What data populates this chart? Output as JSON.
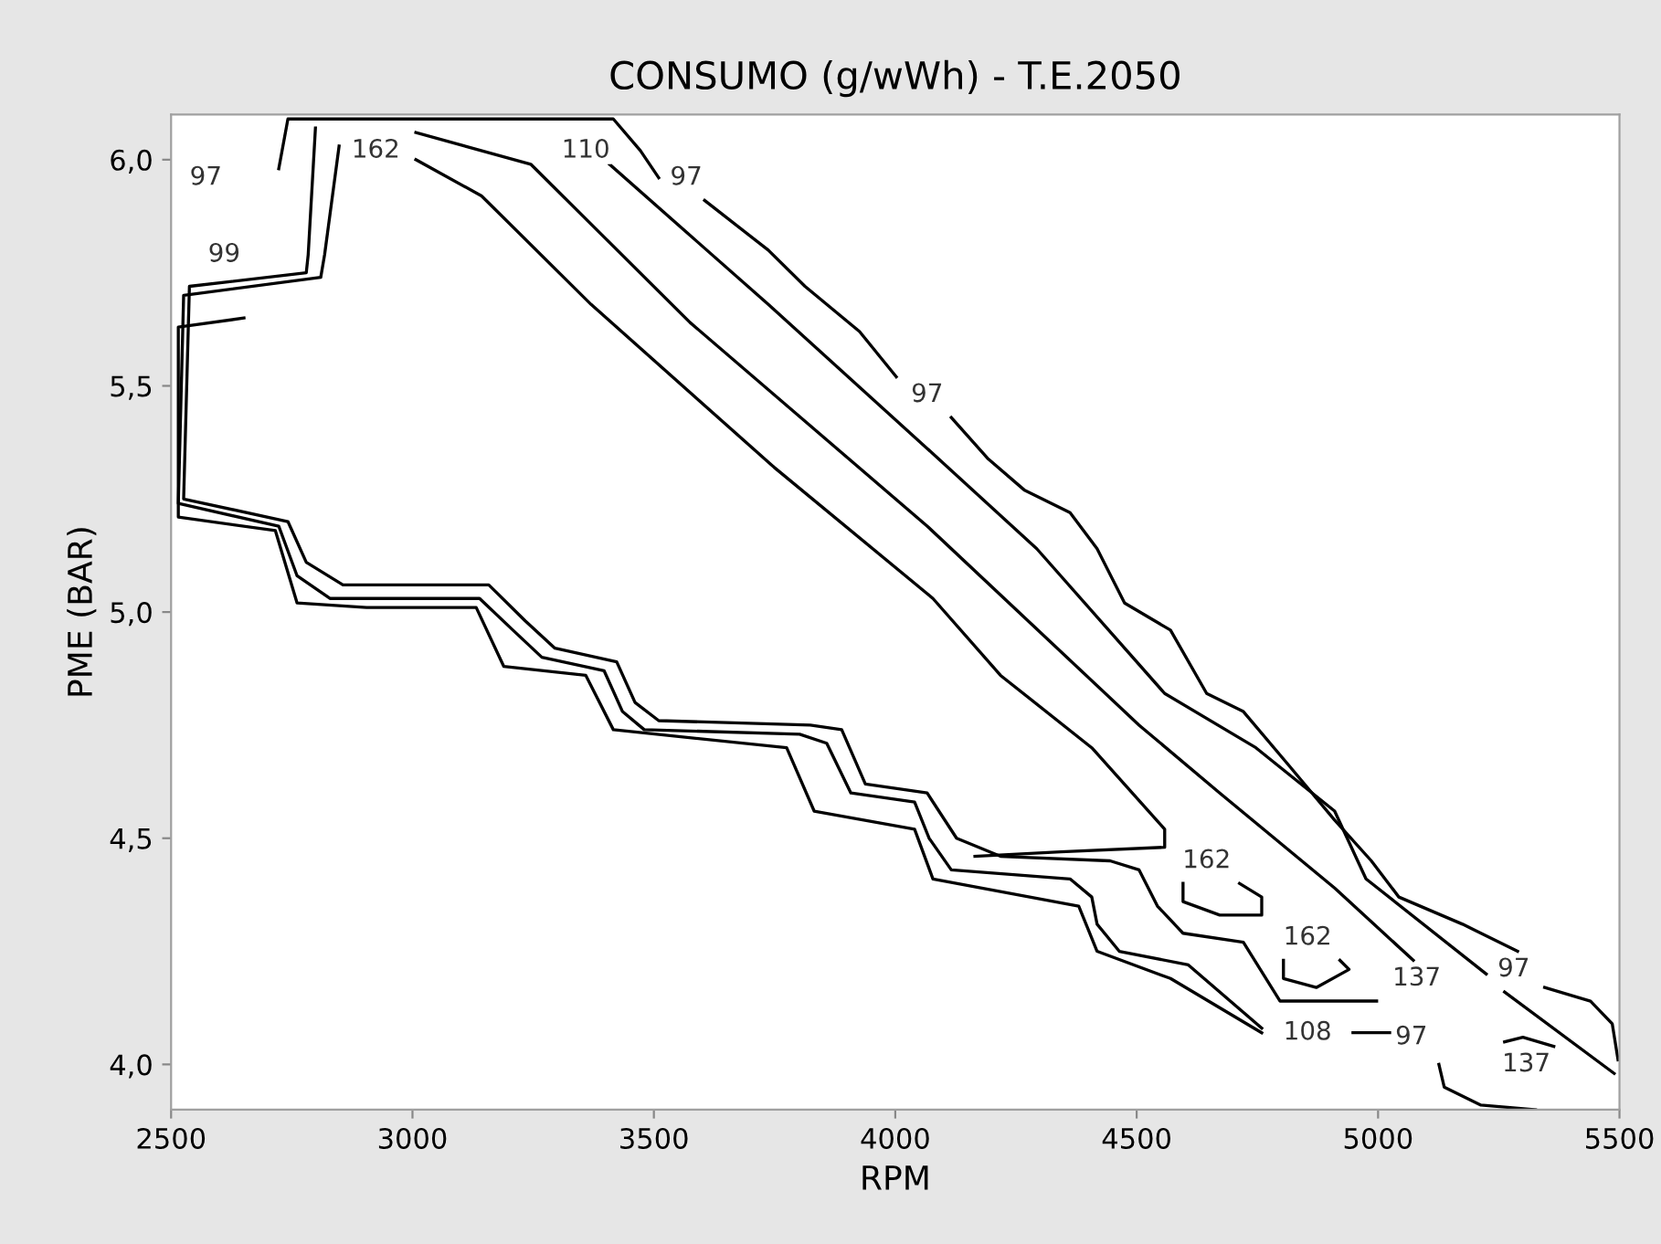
{
  "chart_data": {
    "type": "line",
    "title": "CONSUMO (g/wWh) - T.E.2050",
    "xlabel": "RPM",
    "ylabel": "PME (BAR)",
    "xlim": [
      2500,
      5500
    ],
    "ylim": [
      3.9,
      6.1
    ],
    "xticks": [
      2500,
      3000,
      3500,
      4000,
      4500,
      5000,
      5500
    ],
    "yticks": [
      {
        "value": 4.0,
        "label": "4,0"
      },
      {
        "value": 4.5,
        "label": "4,5"
      },
      {
        "value": 5.0,
        "label": "5,0"
      },
      {
        "value": 5.5,
        "label": "5,5"
      },
      {
        "value": 6.0,
        "label": "6,0"
      }
    ],
    "grid": false,
    "marker": "none",
    "line_style": "solid",
    "series": [
      {
        "color": "#000000",
        "x": [
          2723,
          2742,
          3416,
          3472,
          3510,
          null,
          3605,
          3737,
          3813,
          3926,
          4002,
          null,
          4116,
          4191,
          4267,
          4362,
          4418,
          4475,
          4570,
          4645,
          4721,
          4816,
          4910,
          4986,
          5043,
          5175,
          5289,
          null,
          5345,
          5440,
          5485,
          5497
        ],
        "values": [
          5.98,
          6.09,
          6.09,
          6.02,
          5.96,
          null,
          5.91,
          5.8,
          5.72,
          5.62,
          5.52,
          null,
          5.43,
          5.34,
          5.27,
          5.22,
          5.14,
          5.02,
          4.96,
          4.82,
          4.78,
          4.66,
          4.54,
          4.45,
          4.37,
          4.31,
          4.25,
          null,
          4.17,
          4.14,
          4.09,
          4.01
        ]
      },
      {
        "color": "#000000",
        "x": [
          2651,
          2515,
          2515,
          2716,
          2761,
          2905,
          3132,
          3189,
          3359,
          3416,
          3775,
          3832,
          4040,
          4078,
          4380,
          4418,
          4570,
          4759,
          null,
          4948,
          5024,
          null,
          5126,
          5137,
          5213,
          5326
        ],
        "values": [
          5.65,
          5.63,
          5.21,
          5.18,
          5.02,
          5.01,
          5.01,
          4.88,
          4.86,
          4.74,
          4.7,
          4.56,
          4.52,
          4.41,
          4.35,
          4.25,
          4.19,
          4.07,
          null,
          4.07,
          4.07,
          null,
          4.0,
          3.95,
          3.91,
          3.9
        ]
      },
      {
        "color": "#000000",
        "x": [
          2799,
          2784,
          2780,
          2538,
          2526,
          2742,
          2780,
          2856,
          3158,
          3234,
          3295,
          3423,
          3461,
          3510,
          3824,
          3889,
          3938,
          4066,
          4127,
          4218,
          4445,
          4505,
          4543,
          4596,
          4721,
          4797,
          4997
        ],
        "values": [
          6.07,
          5.79,
          5.75,
          5.72,
          5.25,
          5.2,
          5.11,
          5.06,
          5.06,
          4.98,
          4.92,
          4.89,
          4.8,
          4.76,
          4.75,
          4.74,
          4.62,
          4.6,
          4.5,
          4.46,
          4.45,
          4.43,
          4.35,
          4.29,
          4.27,
          4.14,
          4.14
        ]
      },
      {
        "color": "#000000",
        "x": [
          2848,
          2818,
          2810,
          2526,
          2515,
          2723,
          2761,
          2829,
          3139,
          3208,
          3268,
          3397,
          3435,
          3480,
          3802,
          3858,
          3908,
          4040,
          4070,
          4116,
          4362,
          4407,
          4418,
          4464,
          4607,
          4759
        ],
        "values": [
          6.03,
          5.79,
          5.74,
          5.7,
          5.24,
          5.19,
          5.08,
          5.03,
          5.03,
          4.96,
          4.9,
          4.87,
          4.78,
          4.74,
          4.73,
          4.71,
          4.6,
          4.58,
          4.5,
          4.43,
          4.41,
          4.37,
          4.31,
          4.25,
          4.22,
          4.08
        ]
      },
      {
        "color": "#000000",
        "x": [
          3007,
          3143,
          3370,
          3749,
          4078,
          4218,
          4407,
          4558,
          4558,
          4343,
          4165
        ],
        "values": [
          6.0,
          5.92,
          5.68,
          5.32,
          5.03,
          4.86,
          4.7,
          4.52,
          4.48,
          4.47,
          4.46
        ]
      },
      {
        "color": "#000000",
        "x": [
          3007,
          3245,
          3575,
          4066,
          4505,
          4672,
          4910,
          5073
        ],
        "values": [
          6.06,
          5.99,
          5.64,
          5.19,
          4.75,
          4.6,
          4.39,
          4.23
        ]
      },
      {
        "color": "#000000",
        "x": [
          3408,
          3737,
          4078,
          4293,
          4558,
          4747,
          4910,
          4975,
          5224,
          null,
          5262,
          5489
        ],
        "values": [
          5.99,
          5.68,
          5.35,
          5.14,
          4.82,
          4.7,
          4.56,
          4.41,
          4.2,
          null,
          4.16,
          3.98
        ]
      },
      {
        "color": "#000000",
        "x": [
          4596,
          4596,
          4672,
          4759,
          4759,
          4713
        ],
        "values": [
          4.4,
          4.36,
          4.33,
          4.33,
          4.37,
          4.4
        ]
      },
      {
        "color": "#000000",
        "x": [
          4804,
          4804,
          4872,
          4940,
          4921
        ],
        "values": [
          4.23,
          4.19,
          4.17,
          4.21,
          4.23
        ]
      },
      {
        "color": "#000000",
        "x": [
          5262,
          5300,
          5364
        ],
        "values": [
          4.05,
          4.06,
          4.04
        ]
      }
    ],
    "annotations": [
      {
        "text": "97",
        "x": 2572,
        "y": 5.96
      },
      {
        "text": "99",
        "x": 2610,
        "y": 5.79
      },
      {
        "text": "162",
        "x": 2924,
        "y": 6.02
      },
      {
        "text": "110",
        "x": 3359,
        "y": 6.02
      },
      {
        "text": "97",
        "x": 3567,
        "y": 5.96
      },
      {
        "text": "97",
        "x": 4066,
        "y": 5.48
      },
      {
        "text": "162",
        "x": 4645,
        "y": 4.45
      },
      {
        "text": "162",
        "x": 4854,
        "y": 4.28
      },
      {
        "text": "137",
        "x": 5080,
        "y": 4.19
      },
      {
        "text": "97",
        "x": 5281,
        "y": 4.21
      },
      {
        "text": "108",
        "x": 4854,
        "y": 4.07
      },
      {
        "text": "97",
        "x": 5069,
        "y": 4.06
      },
      {
        "text": "137",
        "x": 5307,
        "y": 4.0
      }
    ]
  }
}
